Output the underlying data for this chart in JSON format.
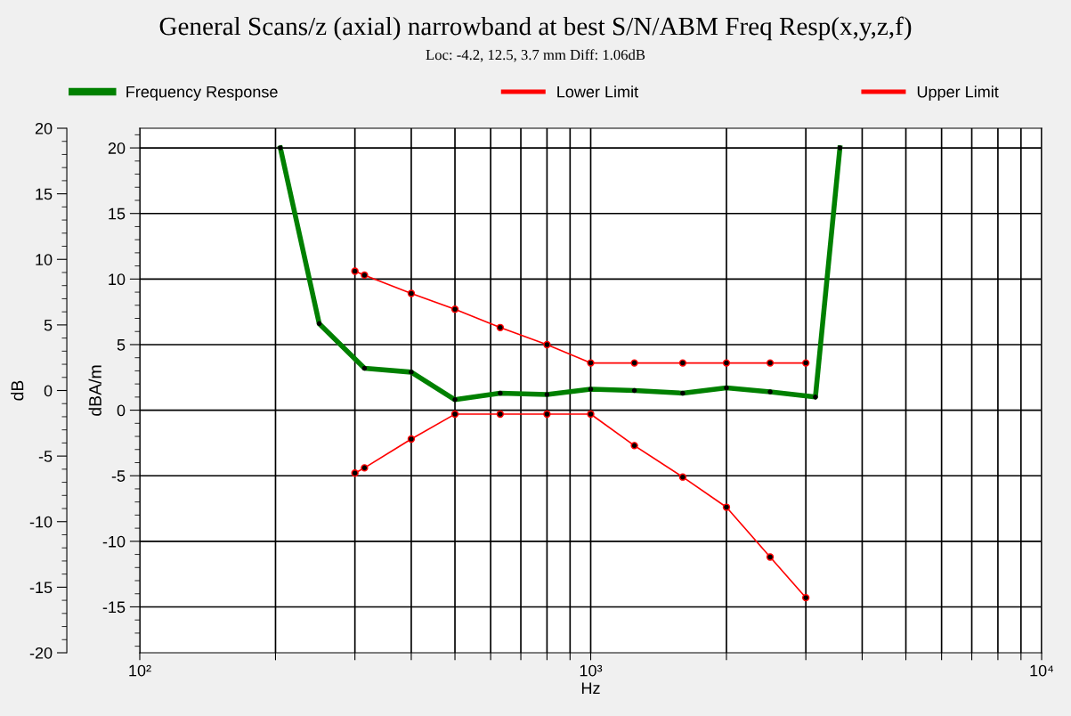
{
  "chart_data": {
    "type": "line",
    "title": "General Scans/z (axial) narrowband at best S/N/ABM Freq Resp(x,y,z,f)",
    "subtitle": "Loc: -4.2, 12.5, 3.7 mm Diff: 1.06dB",
    "xlabel": "Hz",
    "ylabel": "dBA/m",
    "y2label": "dB",
    "log": "x",
    "grid": true,
    "legend": "top",
    "marker": "circle",
    "line_style": "solid",
    "xlim": [
      100,
      10000
    ],
    "xticks": [
      {
        "value": 100,
        "label": "10²"
      },
      {
        "value": 200,
        "label": null
      },
      {
        "value": 300,
        "label": null
      },
      {
        "value": 400,
        "label": null
      },
      {
        "value": 500,
        "label": null
      },
      {
        "value": 600,
        "label": null
      },
      {
        "value": 700,
        "label": null
      },
      {
        "value": 800,
        "label": null
      },
      {
        "value": 900,
        "label": null
      },
      {
        "value": 1000,
        "label": "10³"
      },
      {
        "value": 2000,
        "label": null
      },
      {
        "value": 3000,
        "label": null
      },
      {
        "value": 4000,
        "label": null
      },
      {
        "value": 5000,
        "label": null
      },
      {
        "value": 6000,
        "label": null
      },
      {
        "value": 7000,
        "label": null
      },
      {
        "value": 8000,
        "label": null
      },
      {
        "value": 9000,
        "label": null
      },
      {
        "value": 10000,
        "label": "10⁴"
      }
    ],
    "ylim": [
      -18.5,
      21.5
    ],
    "yticks": [
      -15,
      -10,
      -5,
      0,
      5,
      10,
      15,
      20
    ],
    "y2lim": [
      -20,
      20
    ],
    "y2ticks": [
      -20,
      -15,
      -10,
      -5,
      0,
      5,
      10,
      15,
      20
    ],
    "series": [
      {
        "name": "Frequency Response",
        "color": "#008000",
        "x": [
          205,
          250,
          315,
          400,
          500,
          630,
          800,
          1000,
          1250,
          1600,
          2000,
          2500,
          3150,
          3570
        ],
        "values": [
          20,
          6.6,
          3.2,
          2.9,
          0.8,
          1.3,
          1.2,
          1.6,
          1.5,
          1.3,
          1.7,
          1.4,
          1.0,
          20
        ]
      },
      {
        "name": "Lower Limit",
        "color": "#ff0000",
        "x": [
          300,
          315,
          400,
          500,
          630,
          800,
          1000,
          1250,
          1600,
          2000,
          2500,
          3000
        ],
        "values": [
          -4.8,
          -4.4,
          -2.2,
          -0.3,
          -0.3,
          -0.3,
          -0.3,
          -2.7,
          -5.1,
          -7.4,
          -11.2,
          -14.3
        ]
      },
      {
        "name": "Upper Limit",
        "color": "#ff0000",
        "x": [
          300,
          315,
          400,
          500,
          630,
          800,
          1000,
          1250,
          1600,
          2000,
          2500,
          3000
        ],
        "values": [
          10.6,
          10.3,
          8.9,
          7.7,
          6.3,
          5.0,
          3.6,
          3.6,
          3.6,
          3.6,
          3.6,
          3.6
        ]
      }
    ]
  }
}
